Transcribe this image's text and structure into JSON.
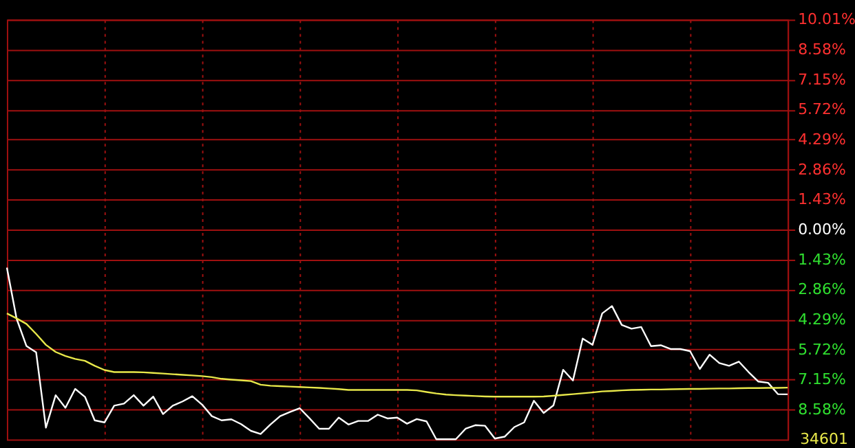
{
  "chart_data": {
    "type": "line",
    "categories": [
      null,
      null,
      null,
      null,
      null,
      null,
      null,
      null,
      null,
      null,
      null,
      null,
      null,
      null,
      null,
      null,
      null,
      null,
      null,
      null,
      null,
      null,
      null,
      null,
      null,
      null,
      null,
      null,
      null,
      null,
      null,
      null,
      null,
      null,
      null,
      null,
      null,
      null,
      null,
      null,
      null,
      null,
      null,
      null,
      null,
      null,
      null,
      null,
      null,
      null,
      null,
      null,
      null,
      null,
      null,
      null,
      null,
      null,
      null,
      null,
      null,
      null,
      null,
      null,
      null,
      null,
      null,
      null,
      null,
      null,
      null,
      null,
      null,
      null,
      null,
      null,
      null,
      null,
      null,
      null,
      null
    ],
    "ylim": [
      -10.01,
      10.01
    ],
    "yticks": [
      {
        "value": 10.01,
        "label": "10.01%"
      },
      {
        "value": 8.58,
        "label": "8.58%"
      },
      {
        "value": 7.15,
        "label": "7.15%"
      },
      {
        "value": 5.72,
        "label": "5.72%"
      },
      {
        "value": 4.29,
        "label": "4.29%"
      },
      {
        "value": 2.86,
        "label": "2.86%"
      },
      {
        "value": 1.43,
        "label": "1.43%"
      },
      {
        "value": 0,
        "label": "0.00%"
      },
      {
        "value": -1.43,
        "label": "1.43%"
      },
      {
        "value": -2.86,
        "label": "2.86%"
      },
      {
        "value": -4.29,
        "label": "4.29%"
      },
      {
        "value": -5.72,
        "label": "5.72%"
      },
      {
        "value": -7.15,
        "label": "7.15%"
      },
      {
        "value": -8.58,
        "label": "8.58%"
      }
    ],
    "annotations": [
      "34601"
    ],
    "tick_labels": "y",
    "grid": true,
    "legend": false,
    "line_style": "solid",
    "marker": "none",
    "series": [
      {
        "color": "#ffffff",
        "values": [
          -1.82,
          -4.26,
          -5.55,
          -5.86,
          -9.45,
          -7.9,
          -8.5,
          -7.6,
          -7.98,
          -9.1,
          -9.2,
          -8.4,
          -8.3,
          -7.9,
          -8.4,
          -7.97,
          -8.8,
          -8.4,
          -8.2,
          -7.95,
          -8.35,
          -8.9,
          -9.1,
          -9.05,
          -9.28,
          -9.6,
          -9.75,
          -9.3,
          -8.9,
          -8.7,
          -8.52,
          -9.0,
          -9.5,
          -9.5,
          -8.97,
          -9.3,
          -9.13,
          -9.13,
          -8.83,
          -9.01,
          -8.97,
          -9.26,
          -9.04,
          -9.15,
          -10.0,
          -10.0,
          -10.0,
          -9.5,
          -9.33,
          -9.36,
          -9.97,
          -9.88,
          -9.42,
          -9.2,
          -8.17,
          -8.75,
          -8.39,
          -6.69,
          -7.2,
          -5.2,
          -5.5,
          -4.0,
          -3.65,
          -4.55,
          -4.73,
          -4.65,
          -5.56,
          -5.52,
          -5.7,
          -5.7,
          -5.8,
          -6.65,
          -5.97,
          -6.37,
          -6.5,
          -6.3,
          -6.8,
          -7.25,
          -7.31,
          -7.85,
          -7.86
        ]
      },
      {
        "color": "#e8e84a",
        "values": [
          -4.0,
          -4.24,
          -4.5,
          -4.98,
          -5.5,
          -5.84,
          -6.03,
          -6.17,
          -6.26,
          -6.5,
          -6.7,
          -6.8,
          -6.8,
          -6.8,
          -6.81,
          -6.84,
          -6.87,
          -6.9,
          -6.93,
          -6.96,
          -6.99,
          -7.04,
          -7.12,
          -7.16,
          -7.19,
          -7.23,
          -7.4,
          -7.45,
          -7.47,
          -7.49,
          -7.51,
          -7.53,
          -7.55,
          -7.58,
          -7.61,
          -7.65,
          -7.65,
          -7.65,
          -7.65,
          -7.65,
          -7.65,
          -7.65,
          -7.67,
          -7.75,
          -7.82,
          -7.87,
          -7.9,
          -7.92,
          -7.94,
          -7.96,
          -7.97,
          -7.97,
          -7.97,
          -7.97,
          -7.97,
          -7.96,
          -7.93,
          -7.89,
          -7.85,
          -7.81,
          -7.77,
          -7.72,
          -7.7,
          -7.67,
          -7.65,
          -7.64,
          -7.63,
          -7.63,
          -7.62,
          -7.61,
          -7.6,
          -7.6,
          -7.59,
          -7.58,
          -7.58,
          -7.57,
          -7.56,
          -7.56,
          -7.55,
          -7.55,
          -7.54
        ]
      }
    ]
  }
}
